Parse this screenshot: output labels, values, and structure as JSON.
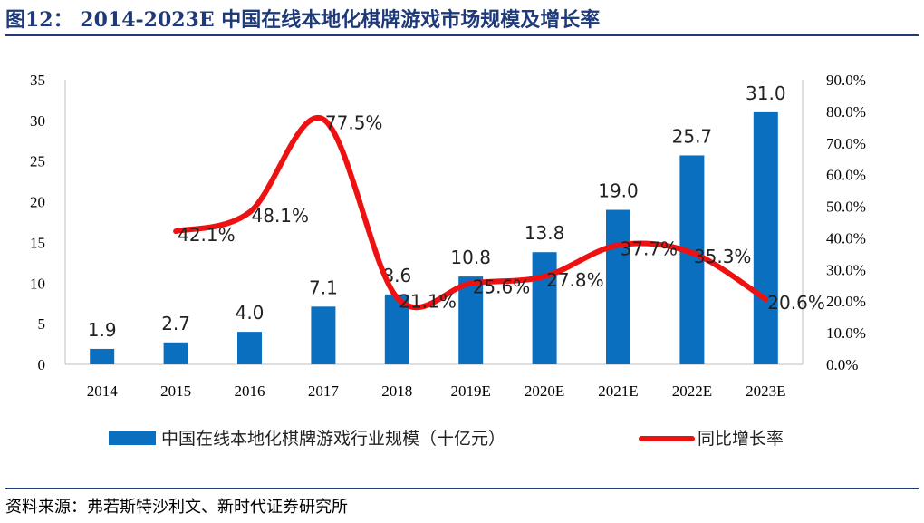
{
  "figure": {
    "title": "图12： 2014-2023E 中国在线本地化棋牌游戏市场规模及增长率",
    "source": "资料来源：弗若斯特沙利文、新时代证券研究所"
  },
  "colors": {
    "bar": "#0b6fc0",
    "line": "#ee1111",
    "title": "#1f3a78"
  },
  "chart_data": {
    "type": "bar",
    "categories": [
      "2014",
      "2015",
      "2016",
      "2017",
      "2018",
      "2019E",
      "2020E",
      "2021E",
      "2022E",
      "2023E"
    ],
    "series": [
      {
        "name": "中国在线本地化棋牌游戏行业规模（十亿元）",
        "type": "bar",
        "axis": "left",
        "values": [
          1.9,
          2.7,
          4.0,
          7.1,
          8.6,
          10.8,
          13.8,
          19.0,
          25.7,
          31.0
        ],
        "labels": [
          "1.9",
          "2.7",
          "4.0",
          "7.1",
          "8.6",
          "10.8",
          "13.8",
          "19.0",
          "25.7",
          "31.0"
        ]
      },
      {
        "name": "同比增长率",
        "type": "line",
        "axis": "right",
        "values": [
          null,
          42.1,
          48.1,
          77.5,
          21.1,
          25.6,
          27.8,
          37.7,
          35.3,
          20.6
        ],
        "labels": [
          "",
          "42.1%",
          "48.1%",
          "77.5%",
          "21.1%",
          "25.6%",
          "27.8%",
          "37.7%",
          "35.3%",
          "20.6%"
        ]
      }
    ],
    "y_left": {
      "ylim": [
        0,
        35
      ],
      "ticks": [
        "0",
        "5",
        "10",
        "15",
        "20",
        "25",
        "30",
        "35"
      ]
    },
    "y_right": {
      "ylim": [
        0,
        90
      ],
      "ticks": [
        "0.0%",
        "10.0%",
        "20.0%",
        "30.0%",
        "40.0%",
        "50.0%",
        "60.0%",
        "70.0%",
        "80.0%",
        "90.0%"
      ]
    },
    "grid": false,
    "legend_position": "bottom"
  }
}
